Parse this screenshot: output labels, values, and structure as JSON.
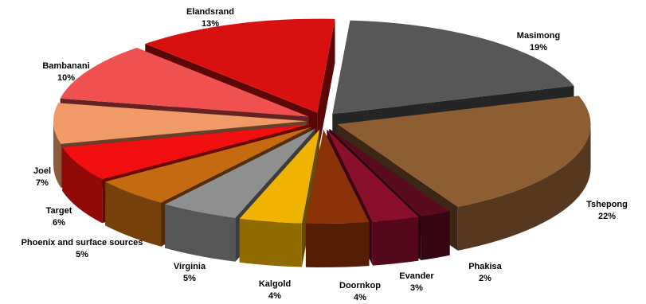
{
  "chart_data": {
    "type": "pie",
    "title": "",
    "style": "exploded-3d",
    "slices": [
      {
        "label": "Masimong",
        "value": 19,
        "pct_label": "19%",
        "color": "#575757"
      },
      {
        "label": "Tshepong",
        "value": 22,
        "pct_label": "22%",
        "color": "#8e5e33"
      },
      {
        "label": "Phakisa",
        "value": 2,
        "pct_label": "2%",
        "color": "#5a0b1e"
      },
      {
        "label": "Evander",
        "value": 3,
        "pct_label": "3%",
        "color": "#8a0f2d"
      },
      {
        "label": "Doornkop",
        "value": 4,
        "pct_label": "4%",
        "color": "#8c3208"
      },
      {
        "label": "Kalgold",
        "value": 4,
        "pct_label": "4%",
        "color": "#f0b400"
      },
      {
        "label": "Virginia",
        "value": 5,
        "pct_label": "5%",
        "color": "#8f8f8f"
      },
      {
        "label": "Phoenix and surface sources",
        "value": 5,
        "pct_label": "5%",
        "color": "#c46a10"
      },
      {
        "label": "Target",
        "value": 6,
        "pct_label": "6%",
        "color": "#f20f0f"
      },
      {
        "label": "Joel",
        "value": 7,
        "pct_label": "7%",
        "color": "#f09a68"
      },
      {
        "label": "Bambanani",
        "value": 10,
        "pct_label": "10%",
        "color": "#ef5050"
      },
      {
        "label": "Elandsrand",
        "value": 13,
        "pct_label": "13%",
        "color": "#d81010"
      }
    ]
  }
}
